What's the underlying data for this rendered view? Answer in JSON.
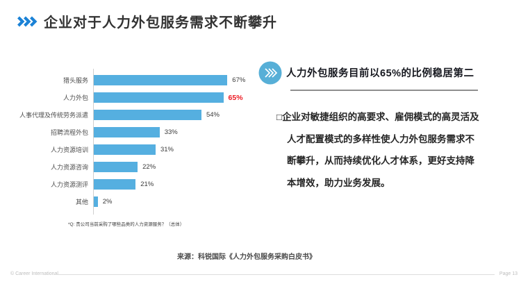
{
  "slide": {
    "title": "企业对于人力外包服务需求不断攀升",
    "title_chevron_color": "#1b82d6",
    "footer": {
      "copyright": "© Career International",
      "page": "Page 13"
    },
    "source": "来源：科锐国际《人力外包服务采购白皮书》"
  },
  "chart_data": {
    "type": "bar",
    "orientation": "horizontal",
    "categories": [
      "猎头服务",
      "人力外包",
      "人事代理及传统劳务派遣",
      "招聘流程外包",
      "人力资源培训",
      "人力资源咨询",
      "人力资源测评",
      "其他"
    ],
    "values": [
      67,
      65,
      54,
      33,
      31,
      22,
      21,
      2
    ],
    "value_labels": [
      "67%",
      "65%",
      "54%",
      "33%",
      "31%",
      "22%",
      "21%",
      "2%"
    ],
    "highlight_index": 1,
    "bar_color": "#55AFE0",
    "highlight_label_color": "#ED1C24",
    "xlim": [
      0,
      70
    ],
    "grid": false,
    "legend": false,
    "footnote": "*Q: 贵公司当前采购了哪些品类的人力资源服务？（总体）"
  },
  "right_panel": {
    "icon": "double-chevron-circle-icon",
    "icon_color": "#57AFD7",
    "heading": "人力外包服务目前以65%的比例稳居第二",
    "bullet": "□",
    "body": "企业对敏捷组织的高要求、雇佣模式的高灵活及人才配置模式的多样性使人力外包服务需求不断攀升，从而持续优化人才体系，更好支持降本增效，助力业务发展。"
  }
}
